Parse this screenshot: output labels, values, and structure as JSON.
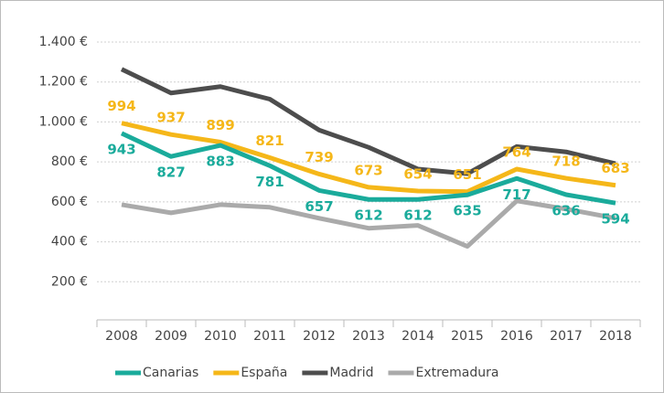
{
  "chart_data": {
    "type": "line",
    "categories": [
      "2008",
      "2009",
      "2010",
      "2011",
      "2012",
      "2013",
      "2014",
      "2015",
      "2016",
      "2017",
      "2018"
    ],
    "series": [
      {
        "name": "Canarias",
        "color": "#1aab9b",
        "data_labels": "below",
        "values": [
          943,
          827,
          883,
          781,
          657,
          612,
          612,
          635,
          717,
          636,
          594
        ]
      },
      {
        "name": "España",
        "color": "#f5b719",
        "data_labels": "above",
        "values": [
          994,
          937,
          899,
          821,
          739,
          673,
          654,
          651,
          764,
          718,
          683
        ]
      },
      {
        "name": "Madrid",
        "color": "#4d4d4d",
        "values": [
          1264,
          1145,
          1177,
          1114,
          959,
          873,
          764,
          741,
          877,
          850,
          791
        ]
      },
      {
        "name": "Extremadura",
        "color": "#aaaaaa",
        "values": [
          586,
          545,
          586,
          573,
          518,
          468,
          482,
          377,
          605,
          564,
          518
        ]
      }
    ],
    "ylim": [
      0,
      1400
    ],
    "yticks": [
      {
        "value": 200,
        "label": "200 €"
      },
      {
        "value": 400,
        "label": "400 €"
      },
      {
        "value": 600,
        "label": "600 €"
      },
      {
        "value": 800,
        "label": "800 €"
      },
      {
        "value": 1000,
        "label": "1.000 €"
      },
      {
        "value": 1200,
        "label": "1.200 €"
      },
      {
        "value": 1400,
        "label": "1.400 €"
      }
    ],
    "grid": true,
    "legend": "bottom"
  }
}
